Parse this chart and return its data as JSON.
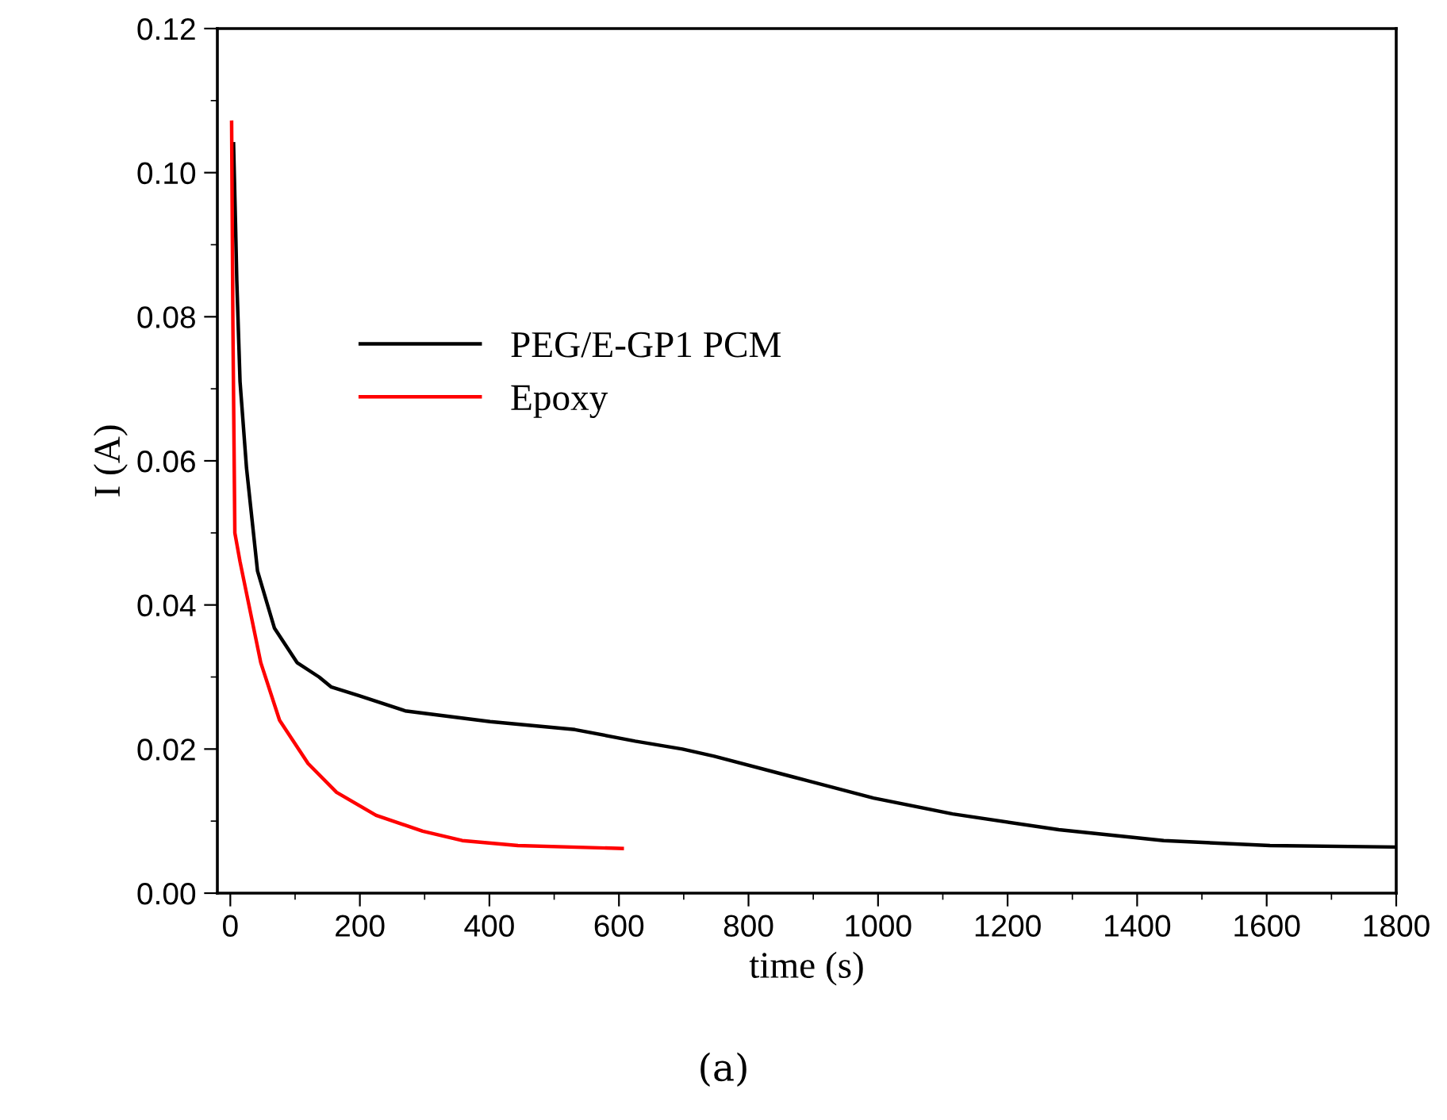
{
  "chart_data": {
    "type": "line",
    "xlabel": "time (s)",
    "ylabel": "I (A)",
    "annotations": [
      "(a)"
    ],
    "xlim": [
      -20,
      1800
    ],
    "xticks": [
      0,
      200,
      400,
      600,
      800,
      1000,
      1200,
      1400,
      1600,
      1800
    ],
    "ylim": [
      0,
      0.12
    ],
    "yticks": [
      {
        "value": 0,
        "label": "0.00"
      },
      {
        "value": 0.02,
        "label": "0.02"
      },
      {
        "value": 0.04,
        "label": "0.04"
      },
      {
        "value": 0.06,
        "label": "0.06"
      },
      {
        "value": 0.08,
        "label": "0.08"
      },
      {
        "value": 0.1,
        "label": "0.10"
      },
      {
        "value": 0.12,
        "label": "0.12"
      }
    ],
    "grid": false,
    "legend": "center",
    "line_style": "solid",
    "marker": "none",
    "series": [
      {
        "name": "PEG/E-GP1 PCM",
        "color": "#000000",
        "x": [
          5,
          8,
          10,
          15,
          25,
          42,
          68,
          103,
          137,
          156,
          199,
          270,
          401,
          532,
          625,
          698,
          747,
          870,
          993,
          1115,
          1279,
          1441,
          1605,
          1800
        ],
        "values": [
          0.104,
          0.093,
          0.085,
          0.071,
          0.059,
          0.0447,
          0.0368,
          0.032,
          0.03,
          0.0286,
          0.0274,
          0.0253,
          0.0238,
          0.0227,
          0.0211,
          0.02,
          0.019,
          0.0161,
          0.0132,
          0.011,
          0.0088,
          0.0073,
          0.0066,
          0.0064
        ]
      },
      {
        "name": "Epoxy",
        "color": "#ff0000",
        "x": [
          2,
          4,
          7,
          15,
          47,
          76,
          120,
          164,
          225,
          297,
          358,
          444,
          605
        ],
        "values": [
          0.107,
          0.0786,
          0.05,
          0.046,
          0.032,
          0.024,
          0.018,
          0.014,
          0.0108,
          0.0086,
          0.0073,
          0.0066,
          0.0062
        ]
      }
    ]
  }
}
